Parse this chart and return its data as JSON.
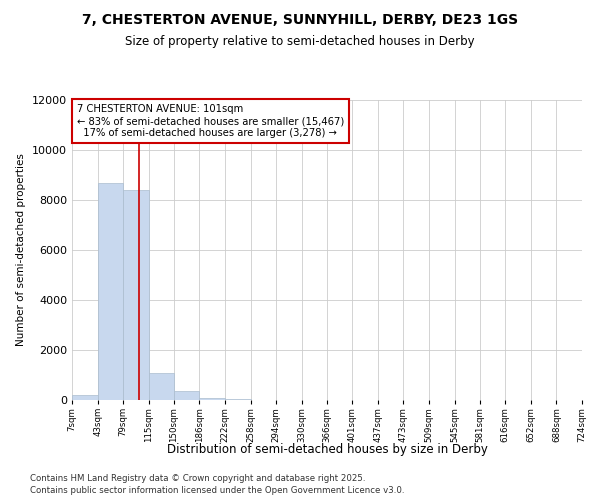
{
  "title": "7, CHESTERTON AVENUE, SUNNYHILL, DERBY, DE23 1GS",
  "subtitle": "Size of property relative to semi-detached houses in Derby",
  "xlabel": "Distribution of semi-detached houses by size in Derby",
  "ylabel": "Number of semi-detached properties",
  "bar_values": [
    200,
    8700,
    8400,
    1100,
    350,
    80,
    30,
    10,
    5,
    3,
    2,
    2,
    1,
    1,
    1,
    1,
    1,
    0,
    0,
    0
  ],
  "bin_edges": [
    7,
    43,
    79,
    115,
    150,
    186,
    222,
    258,
    294,
    330,
    366,
    401,
    437,
    473,
    509,
    545,
    581,
    616,
    652,
    688,
    724
  ],
  "tick_labels": [
    "7sqm",
    "43sqm",
    "79sqm",
    "115sqm",
    "150sqm",
    "186sqm",
    "222sqm",
    "258sqm",
    "294sqm",
    "330sqm",
    "366sqm",
    "401sqm",
    "437sqm",
    "473sqm",
    "509sqm",
    "545sqm",
    "581sqm",
    "616sqm",
    "652sqm",
    "688sqm",
    "724sqm"
  ],
  "bar_color": "#c8d8ee",
  "bar_edge_color": "#aabcce",
  "grid_color": "#cccccc",
  "property_line_x": 101,
  "pct_smaller": 83,
  "count_smaller": 15467,
  "pct_larger": 17,
  "count_larger": 3278,
  "annotation_label": "7 CHESTERTON AVENUE: 101sqm",
  "annotation_box_color": "#ffffff",
  "annotation_box_edge": "#cc0000",
  "line_color": "#cc0000",
  "ylim": [
    0,
    12000
  ],
  "yticks": [
    0,
    2000,
    4000,
    6000,
    8000,
    10000,
    12000
  ],
  "footer1": "Contains HM Land Registry data © Crown copyright and database right 2025.",
  "footer2": "Contains public sector information licensed under the Open Government Licence v3.0.",
  "bg_color": "#ffffff",
  "plot_bg_color": "#ffffff"
}
